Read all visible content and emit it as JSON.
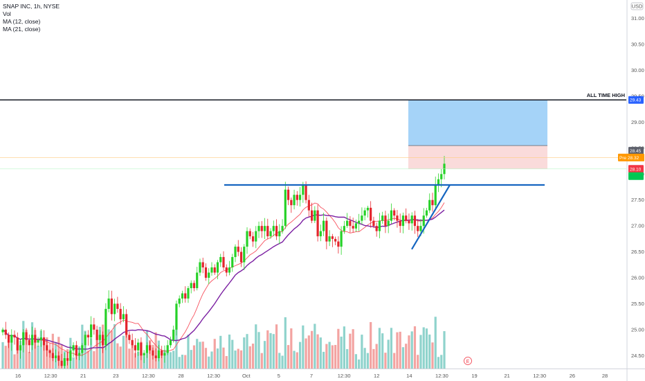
{
  "legend": {
    "symbol": "SNAP INC, 1h, NYSE",
    "vol": "Vol",
    "ma12": "MA (12, close)",
    "ma21": "MA (21, close)"
  },
  "currency": "USD",
  "event_marker": "E",
  "chart_data": {
    "type": "candlestick",
    "x_tick_labels": [
      "16",
      "12:30",
      "21",
      "23",
      "12:30",
      "28",
      "12:30",
      "Oct",
      "5",
      "7",
      "12:30",
      "12",
      "14",
      "12:30",
      "19",
      "21",
      "12:30",
      "26",
      "28"
    ],
    "y_ticks": [
      24.5,
      25.0,
      25.5,
      26.0,
      26.5,
      27.0,
      27.5,
      28.0,
      28.5,
      29.0,
      29.5,
      30.0,
      30.5,
      31.0
    ],
    "y_tick_labels": [
      "24.50",
      "25.00",
      "25.50",
      "26.00",
      "26.50",
      "27.00",
      "27.50",
      "28.00",
      "28.50",
      "29.00",
      "29.50",
      "30.00",
      "30.50",
      "31.00"
    ],
    "ylim": [
      24.25,
      31.25
    ],
    "annotations": {
      "all_time_high_label": "ALL TIME HIGH",
      "all_time_high_value": 29.43,
      "resistance_level": 27.79,
      "target_zone": [
        28.55,
        29.43
      ],
      "stop_zone": [
        28.1,
        28.55
      ]
    },
    "price_labels": [
      {
        "text": "29.43",
        "value": 29.43,
        "color": "#2962ff"
      },
      {
        "text": "28.45",
        "value": 28.45,
        "color": "#5d606b"
      },
      {
        "text": "Pre  28.32",
        "value": 28.32,
        "color": "#ff9800"
      },
      {
        "text": "28.10",
        "value": 28.1,
        "color": "#f23645"
      }
    ],
    "series": [
      {
        "name": "MA (12, close)",
        "color": "#f7525f"
      },
      {
        "name": "MA (21, close)",
        "color": "#7b1fa2"
      }
    ],
    "closes": [
      25.0,
      24.9,
      24.75,
      24.9,
      24.85,
      24.6,
      24.7,
      24.95,
      24.8,
      24.7,
      24.9,
      24.75,
      24.8,
      24.85,
      24.7,
      24.6,
      24.55,
      24.45,
      24.5,
      24.4,
      24.3,
      24.45,
      24.4,
      24.6,
      24.7,
      24.5,
      24.55,
      24.7,
      24.9,
      24.85,
      25.1,
      25.0,
      24.8,
      24.9,
      24.7,
      25.4,
      25.6,
      25.3,
      25.5,
      25.4,
      25.2,
      25.3,
      24.9,
      24.8,
      24.7,
      24.6,
      24.75,
      24.5,
      24.55,
      24.7,
      24.6,
      24.5,
      24.45,
      24.6,
      24.5,
      24.55,
      24.7,
      24.8,
      25.0,
      25.5,
      25.6,
      25.7,
      25.6,
      25.8,
      25.9,
      25.8,
      26.1,
      26.3,
      26.2,
      26.0,
      26.1,
      26.2,
      26.1,
      26.3,
      26.4,
      26.2,
      26.1,
      26.2,
      26.4,
      26.6,
      26.5,
      26.3,
      26.6,
      26.9,
      26.8,
      26.7,
      26.9,
      27.0,
      26.9,
      27.0,
      26.8,
      26.9,
      27.0,
      26.8,
      26.9,
      27.0,
      27.7,
      27.5,
      27.4,
      27.6,
      27.5,
      27.6,
      27.8,
      27.5,
      27.3,
      27.1,
      27.3,
      26.8,
      26.9,
      27.1,
      26.7,
      26.8,
      26.75,
      26.7,
      26.6,
      26.9,
      27.0,
      27.1,
      27.0,
      26.95,
      27.05,
      27.1,
      27.2,
      27.3,
      27.35,
      27.1,
      27.0,
      26.9,
      27.1,
      27.2,
      27.0,
      27.1,
      27.3,
      27.2,
      27.1,
      27.0,
      27.2,
      27.1,
      27.05,
      27.2,
      27.0,
      26.9,
      27.0,
      27.2,
      27.3,
      27.5,
      27.4,
      27.8,
      27.9,
      28.0,
      28.2
    ]
  }
}
